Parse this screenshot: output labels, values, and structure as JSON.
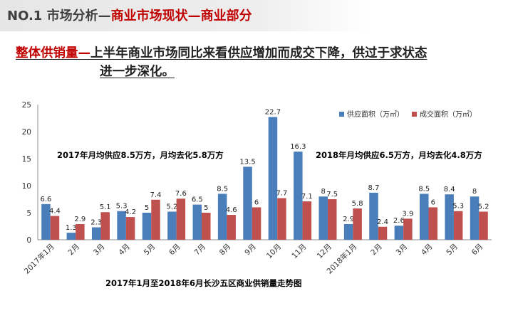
{
  "header": {
    "prefix": "NO.1 市场分析—",
    "accent": "商业市场现状—商业部分"
  },
  "headline": {
    "red": "整体供销量—",
    "line1": "上半年商业市场同比来看供应增加而成交下降，供过于求状态",
    "line2": "进一步深化。"
  },
  "annotations": {
    "y2017": "2017年月均供应8.5万方，月均去化5.8万方",
    "y2018": "2018年月均供应6.5万方，月均去化4.8万方"
  },
  "colors": {
    "supply": "#4a7ebb",
    "sales": "#c0504d",
    "accent": "#c00000"
  },
  "chart_data": {
    "type": "bar",
    "title": "2017年1月至2018年6月长沙五区商业供销量走势图",
    "categories": [
      "2017年1月",
      "2月",
      "3月",
      "4月",
      "5月",
      "6月",
      "7月",
      "8月",
      "9月",
      "10月",
      "11月",
      "12月",
      "2018年1月",
      "2月",
      "3月",
      "4月",
      "5月",
      "6月"
    ],
    "series": [
      {
        "name": "供应面积（万㎡）",
        "values": [
          6.6,
          1.3,
          2.3,
          5.3,
          5,
          5.2,
          6.5,
          8.5,
          13.5,
          22.7,
          16.3,
          8,
          2.9,
          8.7,
          2.6,
          8.5,
          8.4,
          8
        ]
      },
      {
        "name": "成交面积（万㎡）",
        "values": [
          4.4,
          2.9,
          5.1,
          4.2,
          7.4,
          7.6,
          5,
          4.6,
          6,
          7.7,
          7.1,
          7.5,
          5.8,
          2.4,
          3.9,
          6,
          5.3,
          5.2
        ]
      }
    ],
    "ylim": [
      0,
      25
    ],
    "yticks": [
      0,
      5,
      10,
      15,
      20,
      25
    ],
    "legend": "top-right"
  }
}
